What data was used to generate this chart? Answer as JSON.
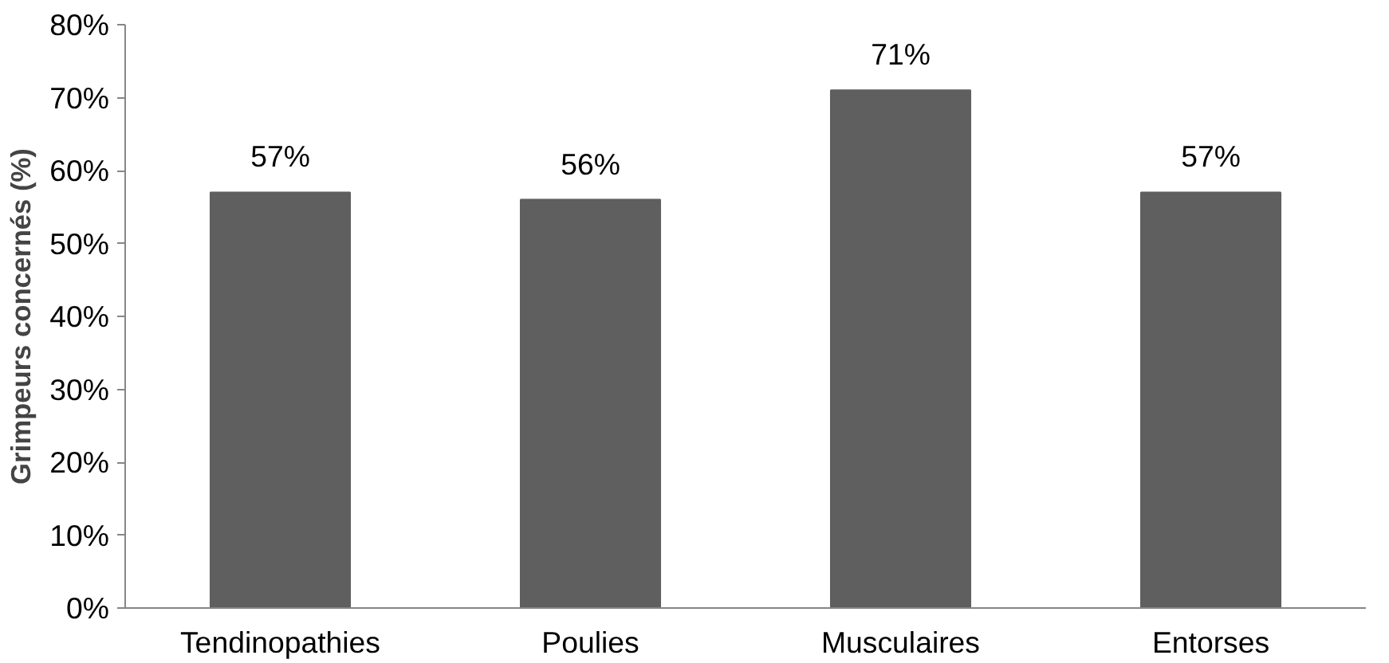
{
  "chart_data": {
    "type": "bar",
    "ylabel": "Grimpeurs concernés (%)",
    "categories": [
      "Tendinopathies",
      "Poulies",
      "Musculaires",
      "Entorses"
    ],
    "values": [
      57,
      56,
      71,
      57
    ],
    "color": "#5f5f5f",
    "value_labels": [
      "57%",
      "56%",
      "71%",
      "57%"
    ],
    "ylim": [
      0,
      80
    ],
    "yticks": [
      {
        "value": 0,
        "label": "0%"
      },
      {
        "value": 10,
        "label": "10%"
      },
      {
        "value": 20,
        "label": "20%"
      },
      {
        "value": 30,
        "label": "30%"
      },
      {
        "value": 40,
        "label": "40%"
      },
      {
        "value": 50,
        "label": "50%"
      },
      {
        "value": 60,
        "label": "60%"
      },
      {
        "value": 70,
        "label": "70%"
      },
      {
        "value": 80,
        "label": "80%"
      }
    ],
    "grid": false
  }
}
